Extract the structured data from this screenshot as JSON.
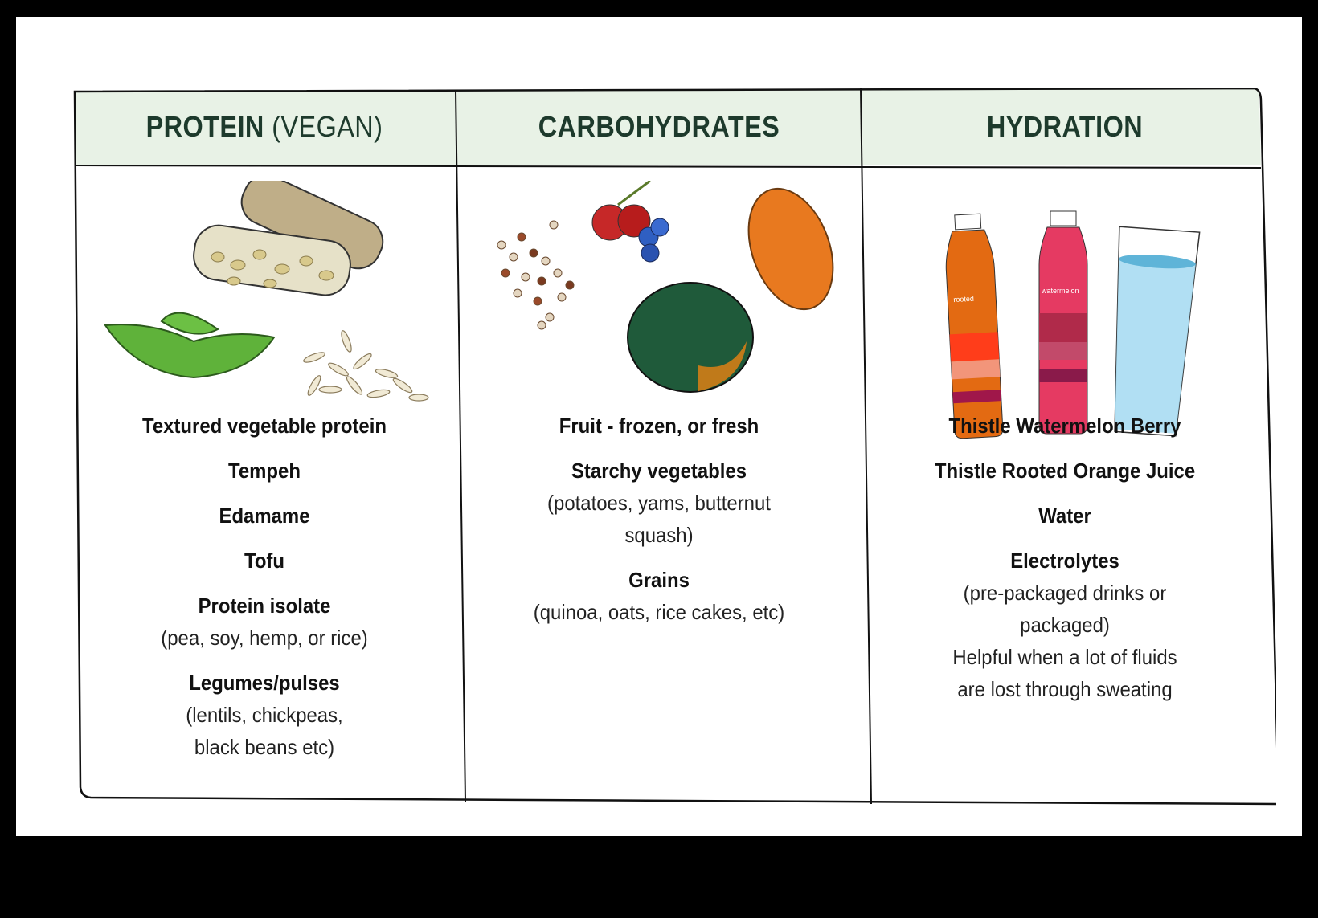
{
  "columns": [
    {
      "title": "PROTEIN",
      "title_suffix": "(VEGAN)",
      "items": [
        {
          "title": "Textured vegetable protein"
        },
        {
          "title": "Tempeh"
        },
        {
          "title": "Edamame"
        },
        {
          "title": "Tofu"
        },
        {
          "title": "Protein isolate",
          "sub": [
            "(pea, soy, hemp, or rice)"
          ]
        },
        {
          "title": "Legumes/pulses",
          "sub": [
            "(lentils, chickpeas,",
            "black beans etc)"
          ]
        }
      ]
    },
    {
      "title": "CARBOHYDRATES",
      "items": [
        {
          "title": "Fruit - frozen, or fresh"
        },
        {
          "title": "Starchy vegetables",
          "sub": [
            "(potatoes, yams, butternut",
            "squash)"
          ]
        },
        {
          "title": "Grains",
          "sub": [
            "(quinoa, oats, rice cakes, etc)"
          ]
        }
      ]
    },
    {
      "title": "HYDRATION",
      "items": [
        {
          "title": "Thistle Watermelon Berry"
        },
        {
          "title": "Thistle Rooted Orange Juice"
        },
        {
          "title": "Water"
        },
        {
          "title": "Electrolytes",
          "sub": [
            "(pre-packaged drinks or",
            "packaged)",
            "Helpful when a lot of fluids",
            "are lost through sweating"
          ]
        }
      ]
    }
  ],
  "bottle_labels": {
    "orange": "rooted orange",
    "berry": "watermelon berry"
  },
  "colors": {
    "header_bg": "#e8f2e6",
    "header_text": "#1d3a2c",
    "border": "#111111"
  }
}
